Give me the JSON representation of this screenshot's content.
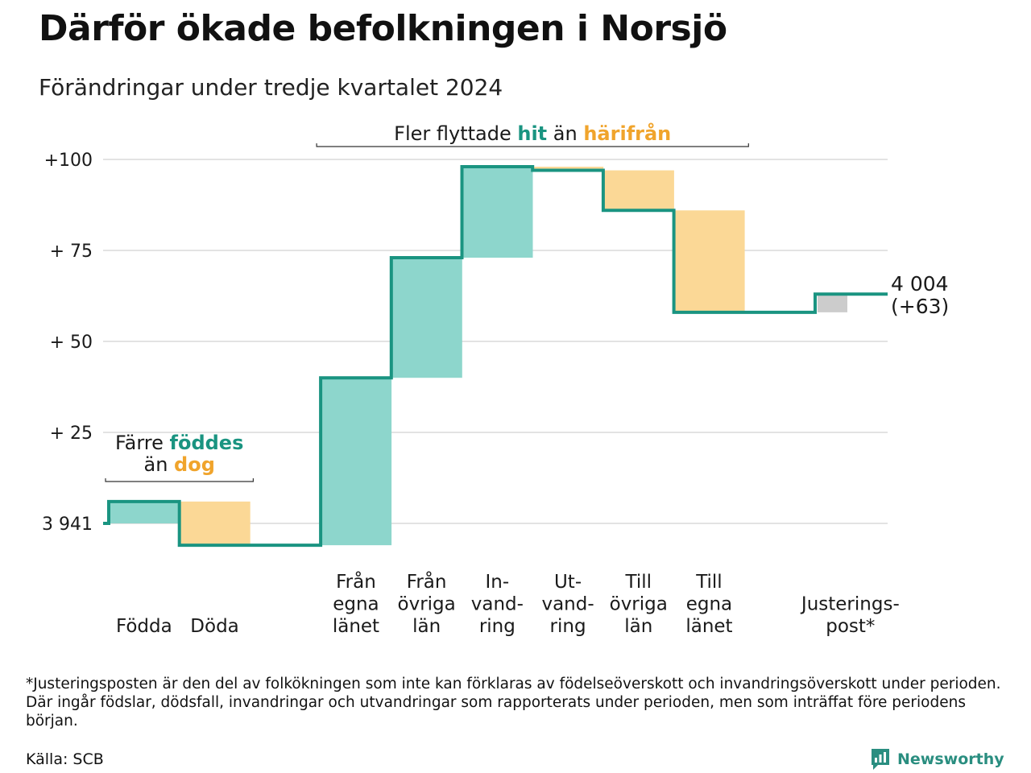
{
  "title": "Därför ökade befolkningen i Norsjö",
  "subtitle": "Förändringar under tredje kvartalet 2024",
  "colors": {
    "teal": "#1a9481",
    "teal_fill": "#8dd6cc",
    "orange_text": "#f0a42c",
    "orange_fill": "#fbd896",
    "gray_fill": "#cccccc",
    "grid": "#e3e3e3"
  },
  "chart_data": {
    "type": "waterfall",
    "base_value": 3941,
    "base_label": "3 941",
    "end_label_value": "4 004",
    "end_label_change": "(+63)",
    "ylim": [
      -5,
      100
    ],
    "y_ticks": [
      {
        "value": 100,
        "label": "+100"
      },
      {
        "value": 75,
        "label": "+ 75"
      },
      {
        "value": 50,
        "label": "+ 50"
      },
      {
        "value": 25,
        "label": "+ 25"
      },
      {
        "value": 0,
        "label": "3 941"
      }
    ],
    "steps": [
      {
        "label": [
          "Födda"
        ],
        "start": 0,
        "end": 6,
        "kind": "in"
      },
      {
        "label": [
          "Döda"
        ],
        "start": 6,
        "end": -6,
        "kind": "out"
      },
      {
        "label": [
          ""
        ],
        "start": -6,
        "end": -6,
        "kind": "none"
      },
      {
        "label": [
          "Från",
          "egna",
          "länet"
        ],
        "start": -6,
        "end": 40,
        "kind": "in"
      },
      {
        "label": [
          "Från",
          "övriga",
          "län"
        ],
        "start": 40,
        "end": 73,
        "kind": "in"
      },
      {
        "label": [
          "In-",
          "vand-",
          "ring"
        ],
        "start": 73,
        "end": 98,
        "kind": "in"
      },
      {
        "label": [
          "Ut-",
          "vand-",
          "ring"
        ],
        "start": 98,
        "end": 97,
        "kind": "out"
      },
      {
        "label": [
          "Till",
          "övriga",
          "län"
        ],
        "start": 97,
        "end": 86,
        "kind": "out"
      },
      {
        "label": [
          "Till",
          "egna",
          "länet"
        ],
        "start": 86,
        "end": 58,
        "kind": "out"
      },
      {
        "label": [
          ""
        ],
        "start": 58,
        "end": 58,
        "kind": "none"
      },
      {
        "label": [
          "Justerings-",
          "post*"
        ],
        "start": 58,
        "end": 63,
        "kind": "adjust"
      }
    ],
    "annotations": [
      {
        "parts": [
          {
            "text": "Fler flyttade ",
            "color": "dark"
          },
          {
            "text": "hit",
            "color": "teal"
          },
          {
            "text": " än ",
            "color": "dark"
          },
          {
            "text": "härifrån",
            "color": "orange"
          }
        ]
      },
      {
        "line1": [
          {
            "text": "Färre ",
            "color": "dark"
          },
          {
            "text": "föddes",
            "color": "teal"
          }
        ],
        "line2": [
          {
            "text": "än ",
            "color": "dark"
          },
          {
            "text": "dog",
            "color": "orange"
          }
        ]
      }
    ]
  },
  "footnote": "*Justeringsposten är den del av folkökningen som inte kan förklaras av födelseöverskott och invandringsöverskott under perioden. Där ingår födslar, dödsfall, invandringar och utvandringar som rapporterats under perioden, men som inträffat före periodens början.",
  "source": "Källa: SCB",
  "logo": {
    "name": "Newsworthy",
    "icon": "bar-chart-speech-icon"
  }
}
